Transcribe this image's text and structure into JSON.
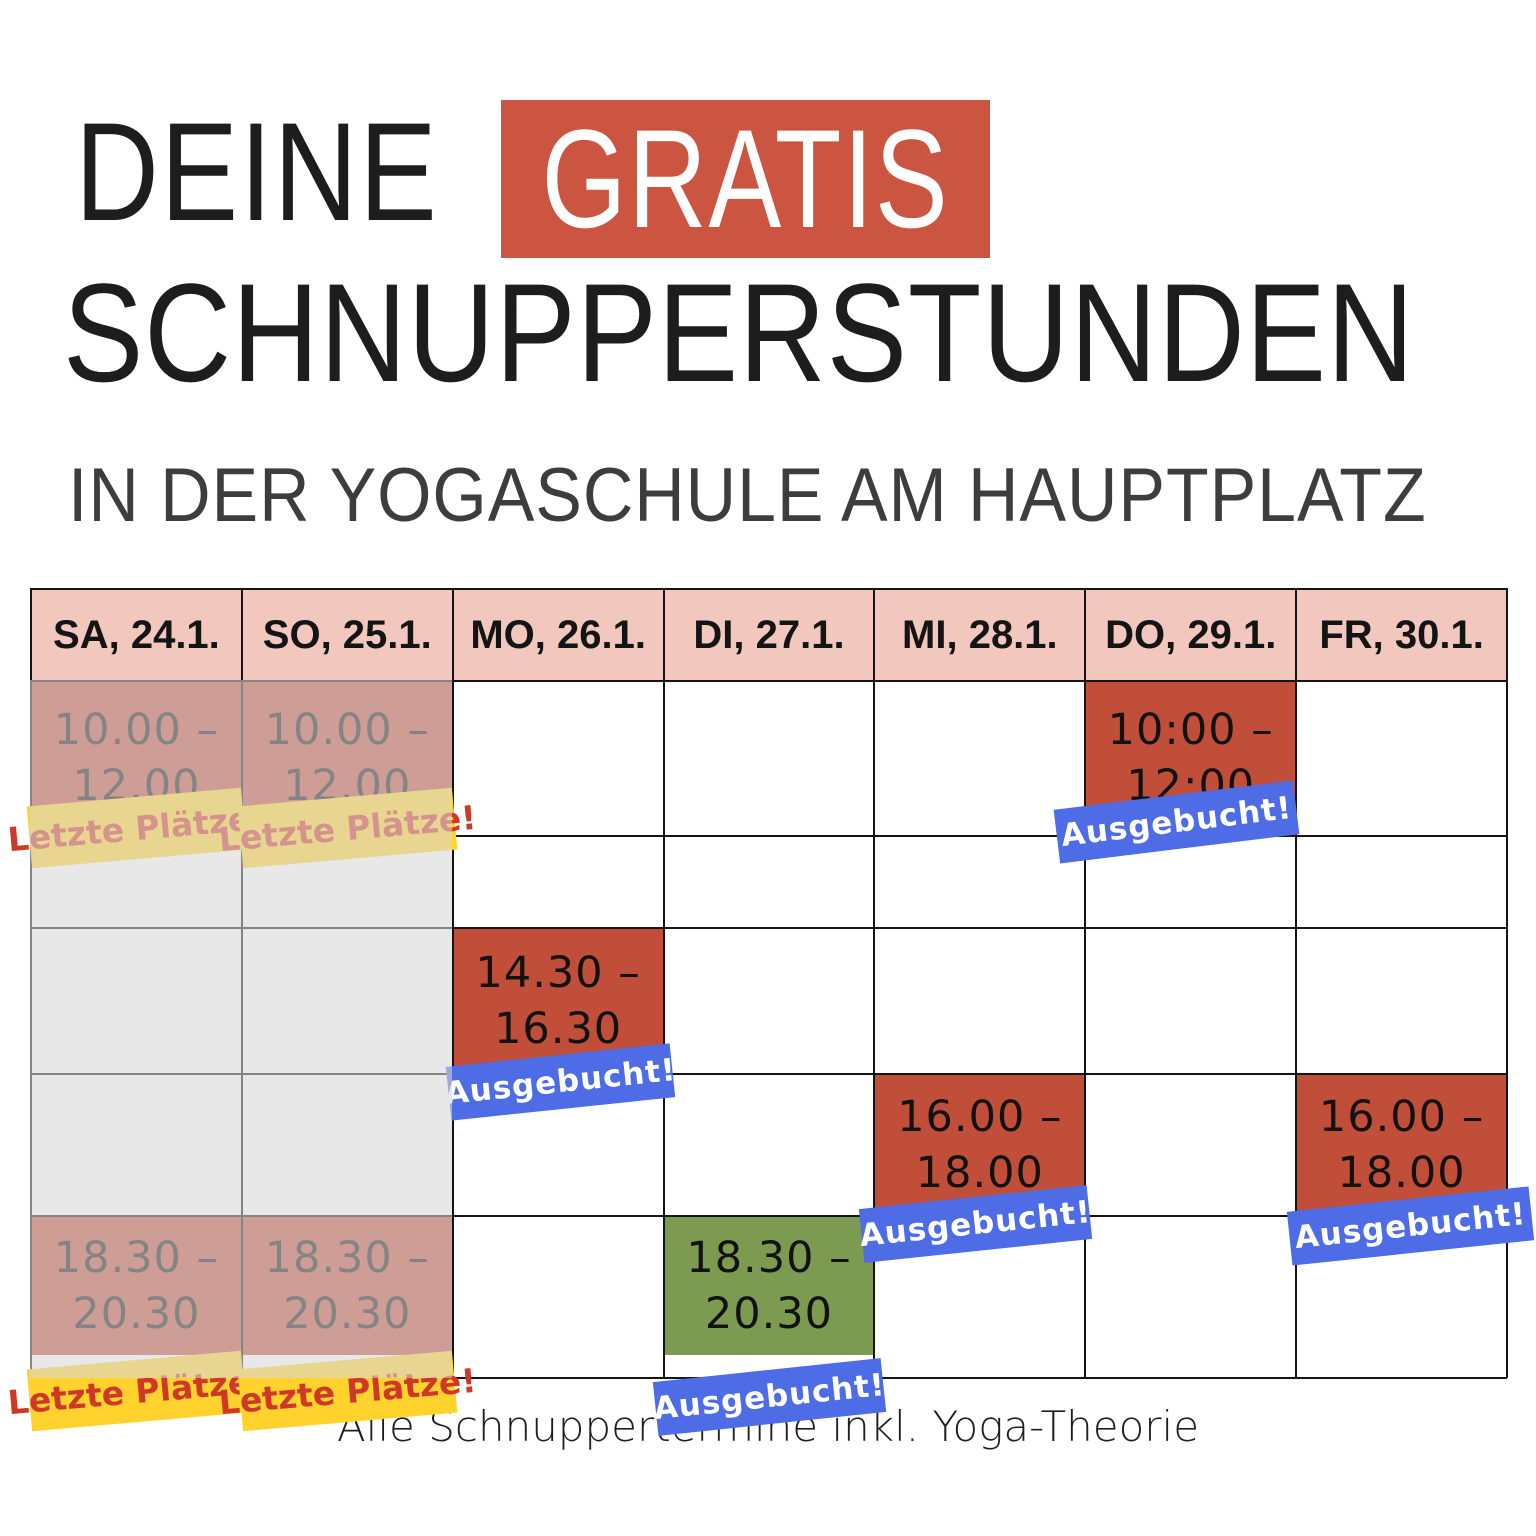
{
  "poster": {
    "title": {
      "deine": "DEINE",
      "gratis": "GRATIS",
      "line2": "SCHNUPPERSTUNDEN",
      "subtitle": "IN DER YOGASCHULE AM HAUPTPLATZ"
    },
    "footer": "Alle Schnuppertermine inkl. Yoga-Theorie",
    "colors": {
      "gratis_box_red": "#cb5540",
      "event_red": "#c04e39",
      "event_green": "#7d9a51",
      "header_pink": "#f1c7be",
      "badge_blue": "#4d6ce6",
      "badge_yellow": "#ffd22e",
      "badge_yellow_text": "#cf3726",
      "border_black": "#141414"
    },
    "schedule": {
      "days": [
        "SA, 24.1.",
        "SO, 25.1.",
        "MO, 26.1.",
        "DI, 27.1.",
        "MI, 28.1.",
        "DO, 29.1.",
        "FR, 30.1."
      ],
      "faded_columns": [
        "SA, 24.1.",
        "SO, 25.1."
      ],
      "events": [
        {
          "day": "SA, 24.1.",
          "col": 0,
          "row": 1,
          "time_line1": "10.00 –",
          "time_line2": "12.00",
          "status": "Letzte Plätze!",
          "block_color": "red",
          "badge_color": "yellow",
          "faded": true
        },
        {
          "day": "SO, 25.1.",
          "col": 1,
          "row": 1,
          "time_line1": "10.00 –",
          "time_line2": "12.00",
          "status": "Letzte Plätze!",
          "block_color": "red",
          "badge_color": "yellow",
          "faded": true
        },
        {
          "day": "DO, 29.1.",
          "col": 5,
          "row": 1,
          "time_line1": "10:00 –",
          "time_line2": "12:00",
          "status": "Ausgebucht!",
          "block_color": "red",
          "badge_color": "blue",
          "faded": false
        },
        {
          "day": "MO, 26.1.",
          "col": 2,
          "row": 3,
          "time_line1": "14.30 –",
          "time_line2": "16.30",
          "status": "Ausgebucht!",
          "block_color": "red",
          "badge_color": "blue",
          "faded": false
        },
        {
          "day": "MI, 28.1.",
          "col": 4,
          "row": 4,
          "time_line1": "16.00 –",
          "time_line2": "18.00",
          "status": "Ausgebucht!",
          "block_color": "red",
          "badge_color": "blue",
          "faded": false
        },
        {
          "day": "FR, 30.1.",
          "col": 6,
          "row": 4,
          "time_line1": "16.00 –",
          "time_line2": "18.00",
          "status": "Ausgebucht!",
          "block_color": "red",
          "badge_color": "blue",
          "faded": false
        },
        {
          "day": "DI, 27.1.",
          "col": 3,
          "row": 5,
          "time_line1": "18.30 –",
          "time_line2": "20.30",
          "status": "Ausgebucht!",
          "block_color": "green",
          "badge_color": "blue",
          "faded": false
        },
        {
          "day": "SA, 24.1.",
          "col": 0,
          "row": 5,
          "time_line1": "18.30 –",
          "time_line2": "20.30",
          "status": "Letzte Plätze!",
          "block_color": "red",
          "badge_color": "yellow",
          "faded": true
        },
        {
          "day": "SO, 25.1.",
          "col": 1,
          "row": 5,
          "time_line1": "18.30 –",
          "time_line2": "20.30",
          "status": "Letzte Plätze!",
          "block_color": "red",
          "badge_color": "yellow",
          "faded": true
        }
      ]
    }
  }
}
